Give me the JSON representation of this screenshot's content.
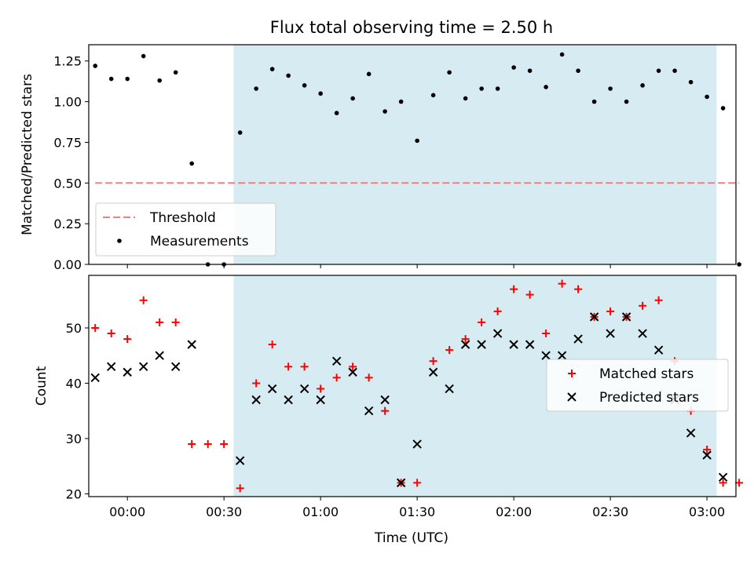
{
  "title": "Flux total observing time = 2.50 h",
  "xlabel": "Time (UTC)",
  "x_tick_labels": [
    "00:00",
    "00:30",
    "01:00",
    "01:30",
    "02:00",
    "02:30",
    "03:00"
  ],
  "colors": {
    "shade": "#add8e6",
    "threshold": "#f08080",
    "measurement": "#000000",
    "matched": "#ff0000",
    "predicted": "#000000"
  },
  "chart_data": [
    {
      "type": "scatter",
      "ylabel": "Matched/Predicted stars",
      "y_tick_labels": [
        "0.00",
        "0.25",
        "0.50",
        "0.75",
        "1.00",
        "1.25"
      ],
      "ylim": [
        0,
        1.35
      ],
      "xlim": [
        "23:48",
        "03:09"
      ],
      "observing_window": [
        "00:33",
        "03:03"
      ],
      "threshold": {
        "value": 0.5,
        "x_range": [
          "23:50",
          "03:10"
        ]
      },
      "legend": [
        "Threshold",
        "Measurements"
      ],
      "legend_position": "lower-left",
      "series": [
        {
          "name": "Measurements",
          "x": [
            "23:50",
            "23:55",
            "00:00",
            "00:05",
            "00:10",
            "00:15",
            "00:20",
            "00:25",
            "00:30",
            "00:35",
            "00:40",
            "00:45",
            "00:50",
            "00:55",
            "01:00",
            "01:05",
            "01:10",
            "01:15",
            "01:20",
            "01:25",
            "01:30",
            "01:35",
            "01:40",
            "01:45",
            "01:50",
            "01:55",
            "02:00",
            "02:05",
            "02:10",
            "02:15",
            "02:20",
            "02:25",
            "02:30",
            "02:35",
            "02:40",
            "02:45",
            "02:50",
            "02:55",
            "03:00",
            "03:05",
            "03:10"
          ],
          "values": [
            1.22,
            1.14,
            1.14,
            1.28,
            1.13,
            1.18,
            0.62,
            0.0,
            0.0,
            0.81,
            1.08,
            1.2,
            1.16,
            1.1,
            1.05,
            0.93,
            1.02,
            1.17,
            0.94,
            1.0,
            0.76,
            1.04,
            1.18,
            1.02,
            1.08,
            1.08,
            1.21,
            1.19,
            1.09,
            1.29,
            1.19,
            1.0,
            1.08,
            1.0,
            1.1,
            1.19,
            1.19,
            1.12,
            1.03,
            0.96,
            0.0
          ]
        }
      ]
    },
    {
      "type": "scatter",
      "ylabel": "Count",
      "y_tick_labels": [
        "20",
        "30",
        "40",
        "50"
      ],
      "ylim": [
        19.5,
        59.5
      ],
      "xlim": [
        "23:48",
        "03:09"
      ],
      "observing_window": [
        "00:33",
        "03:03"
      ],
      "legend": [
        "Matched stars",
        "Predicted stars"
      ],
      "legend_position": "center-right",
      "series": [
        {
          "name": "Matched stars",
          "x": [
            "23:50",
            "23:55",
            "00:00",
            "00:05",
            "00:10",
            "00:15",
            "00:20",
            "00:25",
            "00:30",
            "00:35",
            "00:40",
            "00:45",
            "00:50",
            "00:55",
            "01:00",
            "01:05",
            "01:10",
            "01:15",
            "01:20",
            "01:25",
            "01:30",
            "01:35",
            "01:40",
            "01:45",
            "01:50",
            "01:55",
            "02:00",
            "02:05",
            "02:10",
            "02:15",
            "02:20",
            "02:25",
            "02:30",
            "02:35",
            "02:40",
            "02:45",
            "02:50",
            "02:55",
            "03:00",
            "03:05",
            "03:10"
          ],
          "values": [
            50,
            49,
            48,
            55,
            51,
            51,
            29,
            29,
            29,
            21,
            40,
            47,
            43,
            43,
            39,
            41,
            43,
            41,
            35,
            22,
            22,
            44,
            46,
            48,
            51,
            53,
            57,
            56,
            49,
            58,
            57,
            52,
            53,
            52,
            54,
            55,
            44,
            35,
            28,
            22,
            22
          ]
        },
        {
          "name": "Predicted stars",
          "x": [
            "23:50",
            "23:55",
            "00:00",
            "00:05",
            "00:10",
            "00:15",
            "00:20",
            "00:35",
            "00:40",
            "00:45",
            "00:50",
            "00:55",
            "01:00",
            "01:05",
            "01:10",
            "01:15",
            "01:20",
            "01:25",
            "01:30",
            "01:35",
            "01:40",
            "01:45",
            "01:50",
            "01:55",
            "02:00",
            "02:05",
            "02:10",
            "02:15",
            "02:20",
            "02:25",
            "02:30",
            "02:35",
            "02:40",
            "02:45",
            "02:50",
            "02:55",
            "03:00",
            "03:05"
          ],
          "values": [
            41,
            43,
            42,
            43,
            45,
            43,
            47,
            26,
            37,
            39,
            37,
            39,
            37,
            44,
            42,
            35,
            37,
            22,
            29,
            42,
            39,
            47,
            47,
            49,
            47,
            47,
            45,
            45,
            48,
            52,
            49,
            52,
            49,
            46,
            37,
            31,
            27,
            23
          ]
        }
      ]
    }
  ]
}
